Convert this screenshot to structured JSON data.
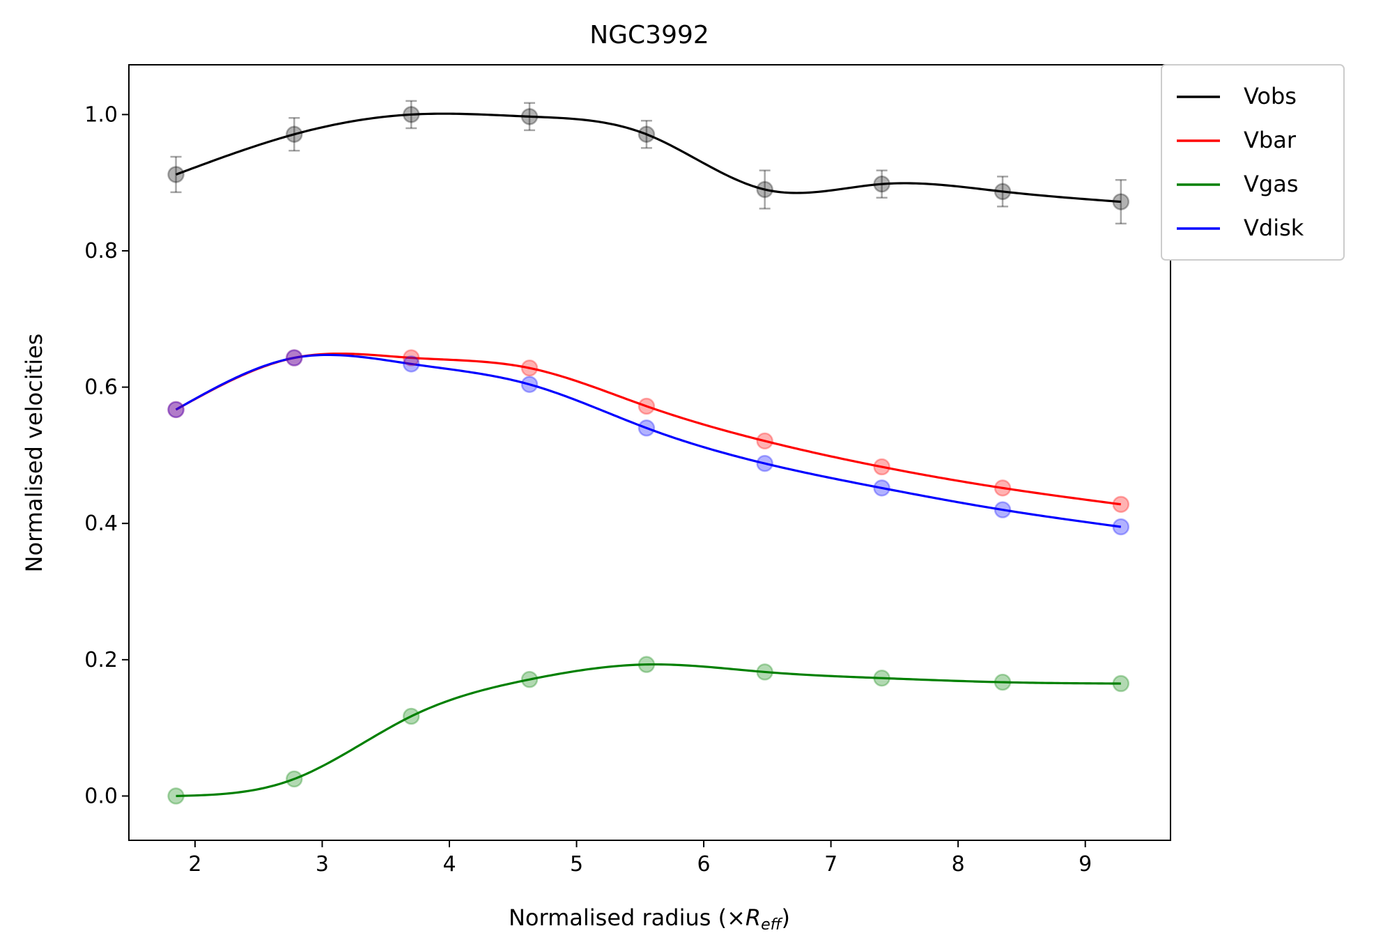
{
  "chart_data": {
    "type": "line",
    "title": "NGC3992",
    "xlabel": "Normalised radius (×",
    "xlabel_math": "R",
    "xlabel_sub": "eff",
    "xlabel_close": ")",
    "ylabel": "Normalised velocities",
    "xlim": [
      1.48,
      9.67
    ],
    "ylim": [
      -0.065,
      1.073
    ],
    "xticks": [
      2,
      3,
      4,
      5,
      6,
      7,
      8,
      9
    ],
    "xtick_labels": [
      "2",
      "3",
      "4",
      "5",
      "6",
      "7",
      "8",
      "9"
    ],
    "yticks": [
      0.0,
      0.2,
      0.4,
      0.6,
      0.8,
      1.0
    ],
    "ytick_labels": [
      "0.0",
      "0.2",
      "0.4",
      "0.6",
      "0.8",
      "1.0"
    ],
    "grid": false,
    "legend_position": "outside-top-right",
    "x": [
      1.85,
      2.78,
      3.7,
      4.63,
      5.55,
      6.48,
      7.4,
      8.35,
      9.28
    ],
    "series": [
      {
        "name": "Vobs",
        "color": "#000000",
        "values": [
          0.912,
          0.971,
          1.0,
          0.997,
          0.971,
          0.89,
          0.898,
          0.887,
          0.872
        ],
        "errors": [
          0.026,
          0.024,
          0.02,
          0.02,
          0.02,
          0.028,
          0.02,
          0.022,
          0.032
        ]
      },
      {
        "name": "Vbar",
        "color": "#ff0000",
        "values": [
          0.567,
          0.643,
          0.643,
          0.628,
          0.572,
          0.521,
          0.483,
          0.452,
          0.428
        ]
      },
      {
        "name": "Vgas",
        "color": "#008000",
        "values": [
          0.0,
          0.025,
          0.117,
          0.171,
          0.193,
          0.182,
          0.173,
          0.167,
          0.165
        ]
      },
      {
        "name": "Vdisk",
        "color": "#0000ff",
        "values": [
          0.567,
          0.643,
          0.634,
          0.604,
          0.54,
          0.488,
          0.452,
          0.42,
          0.395
        ]
      }
    ]
  }
}
